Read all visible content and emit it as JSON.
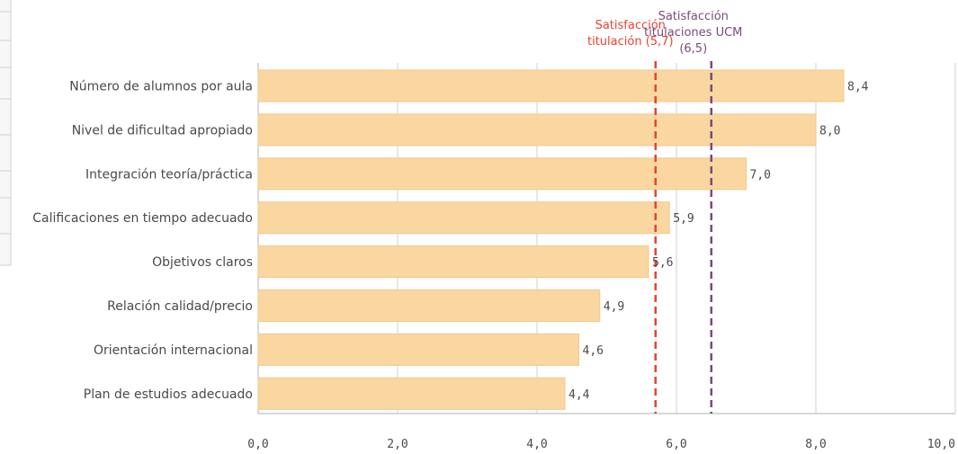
{
  "colors": {
    "bar": "#fad7a0",
    "bar_border": "#f3c78a",
    "grid": "#d0d0d0",
    "axis": "#b0b0b0",
    "text": "#4a4a4a",
    "ref_titulacion": "#e8432e",
    "ref_ucm": "#7b4a7e",
    "left_panel_border": "#cfcfcf",
    "left_panel_bg": "#f7f7f7"
  },
  "chart_data": {
    "type": "bar",
    "orientation": "horizontal",
    "categories": [
      "Número de alumnos por aula",
      "Nivel de dificultad apropiado",
      "Integración teoría/práctica",
      "Calificaciones en tiempo adecuado",
      "Objetivos claros",
      "Relación calidad/precio",
      "Orientación internacional",
      "Plan de estudios adecuado"
    ],
    "values": [
      8.4,
      8.0,
      7.0,
      5.9,
      5.6,
      4.9,
      4.6,
      4.4
    ],
    "value_labels": [
      "8,4",
      "8,0",
      "7,0",
      "5,9",
      "5,6",
      "4,9",
      "4,6",
      "4,4"
    ],
    "xlim": [
      0,
      10
    ],
    "x_ticks": [
      0,
      2,
      4,
      6,
      8,
      10
    ],
    "x_tick_labels": [
      "0,0",
      "2,0",
      "4,0",
      "6,0",
      "8,0",
      "10,0"
    ],
    "grid": true,
    "reference_lines": [
      {
        "value": 5.7,
        "label_lines": [
          "Satisfacción",
          "titulación (5,7)"
        ],
        "color": "#e8432e",
        "style": "dashed"
      },
      {
        "value": 6.5,
        "label_lines": [
          "Satisfacción",
          "titulaciones UCM",
          "(6,5)"
        ],
        "color": "#7b4a7e",
        "style": "dashed"
      }
    ],
    "title": "",
    "xlabel": "",
    "ylabel": ""
  }
}
